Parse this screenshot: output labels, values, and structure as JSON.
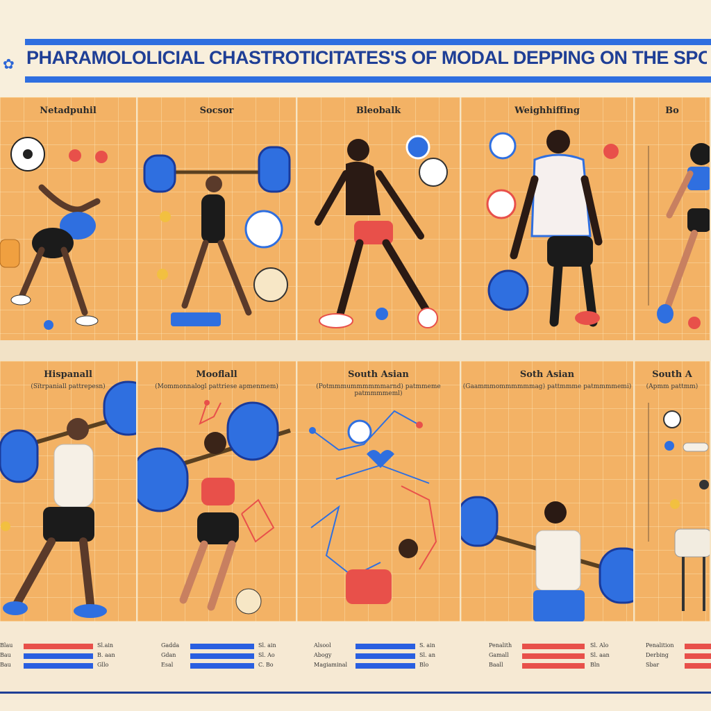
{
  "header": {
    "ornament": "✿",
    "title": "PHARAMOLOLICIAL CHASTROTICITATES'S OF MODAL DEPPING ON THE SPORT"
  },
  "panels_top": [
    {
      "title": "Netadpuhil",
      "subtitle": ""
    },
    {
      "title": "Socsor",
      "subtitle": ""
    },
    {
      "title": "Bleobalk",
      "subtitle": ""
    },
    {
      "title": "Weighhiffing",
      "subtitle": ""
    },
    {
      "title": "Bo",
      "subtitle": ""
    }
  ],
  "panels_bottom": [
    {
      "title": "Hispanall",
      "subtitle": "(Sïtrpaniall pattrepesn)"
    },
    {
      "title": "Mooflall",
      "subtitle": "(Mommonnalogl pattriese apmenmem)"
    },
    {
      "title": "South Asian",
      "subtitle": "(Potmmmummmmmmarnd) patmmeme patmmmmeml)"
    },
    {
      "title": "Soth Asian",
      "subtitle": "(Gaammmommmmmmag) pattmmme patmmmmemi)"
    },
    {
      "title": "South A",
      "subtitle": "(Apmm pattmm)"
    }
  ],
  "stats": [
    {
      "rows": [
        {
          "label": "Blau",
          "value": "Sl.ain",
          "color": "#e8504a"
        },
        {
          "label": "Bau",
          "value": "B. aan",
          "color": "#2a5fe0"
        },
        {
          "label": "Bau",
          "value": "Gllo",
          "color": "#2a5fe0"
        }
      ]
    },
    {
      "rows": [
        {
          "label": "Gadda",
          "value": "Sl. ain",
          "color": "#2a5fe0"
        },
        {
          "label": "Gdan",
          "value": "Sl. Ao",
          "color": "#2a5fe0"
        },
        {
          "label": "Esal",
          "value": "C. Bo",
          "color": "#2a5fe0"
        }
      ]
    },
    {
      "rows": [
        {
          "label": "Alsool",
          "value": "S. ain",
          "color": "#2a5fe0"
        },
        {
          "label": "Abogy",
          "value": "Sl. an",
          "color": "#2a5fe0"
        },
        {
          "label": "Magiaminal",
          "value": "Blo",
          "color": "#2a5fe0"
        }
      ]
    },
    {
      "rows": [
        {
          "label": "Penalith",
          "value": "Sl. Alo",
          "color": "#e8504a"
        },
        {
          "label": "Gamall",
          "value": "Sl. aan",
          "color": "#e8504a"
        },
        {
          "label": "Baall",
          "value": "Bln",
          "color": "#e8504a"
        }
      ]
    },
    {
      "rows": [
        {
          "label": "Penalition",
          "value": "",
          "color": "#e8504a"
        },
        {
          "label": "Derbing",
          "value": "",
          "color": "#e8504a"
        },
        {
          "label": "Sbar",
          "value": "",
          "color": "#e8504a"
        }
      ]
    }
  ],
  "colors": {
    "accent": "#2f6fe0",
    "navy": "#1f3f96",
    "panel": "#f3b265",
    "red": "#e8504a"
  }
}
